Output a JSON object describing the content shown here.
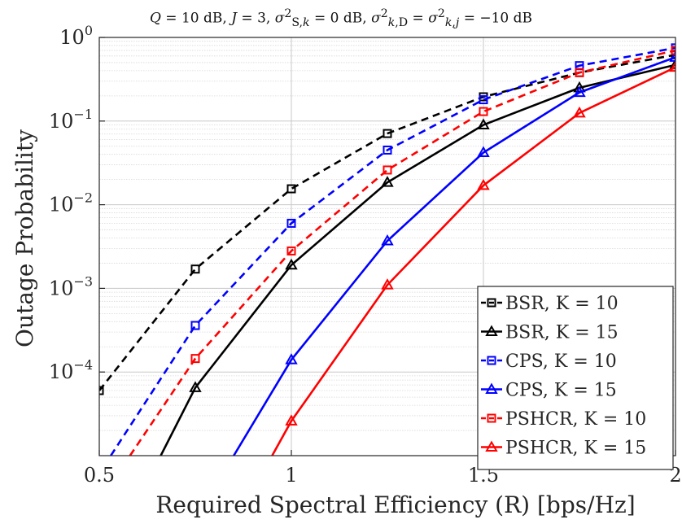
{
  "chart_data": {
    "type": "line",
    "title": "Q = 10 dB, J = 3, σ²_{S,k} = 0 dB, σ²_{k,D} = σ²_{k,j} = −10 dB",
    "xlabel": "Required Spectral Efficiency (R) [bps/Hz]",
    "ylabel": "Outage Probability",
    "yscale": "log",
    "xlim": [
      0.5,
      2
    ],
    "ylim": [
      1e-05,
      1
    ],
    "xticks": [
      "0.5",
      "1",
      "1.5",
      "2"
    ],
    "xtick_values": [
      0.5,
      1,
      1.5,
      2
    ],
    "yticks": [
      {
        "base": "10",
        "exp": "0",
        "value": 1
      },
      {
        "base": "10",
        "exp": "−1",
        "value": 0.1
      },
      {
        "base": "10",
        "exp": "−2",
        "value": 0.01
      },
      {
        "base": "10",
        "exp": "−3",
        "value": 0.001
      },
      {
        "base": "10",
        "exp": "−4",
        "value": 0.0001
      }
    ],
    "grid": true,
    "legend_position": "bottom-right",
    "series": [
      {
        "name": "BSR, K = 10",
        "color": "#000000",
        "dash": true,
        "marker": "square",
        "x": [
          0.5,
          0.75,
          1.0,
          1.25,
          1.5,
          1.75,
          2.0
        ],
        "y": [
          6e-05,
          0.0017,
          0.0155,
          0.071,
          0.195,
          0.38,
          0.62
        ]
      },
      {
        "name": "BSR, K = 15",
        "color": "#000000",
        "dash": false,
        "marker": "triangle",
        "x": [
          0.75,
          1.0,
          1.25,
          1.5,
          1.75,
          2.0
        ],
        "y": [
          6.5e-05,
          0.0019,
          0.0185,
          0.09,
          0.25,
          0.47
        ],
        "extend_to": [
          0.66,
          1e-05
        ]
      },
      {
        "name": "CPS, K = 10",
        "color": "#0000ff",
        "dash": true,
        "marker": "square",
        "x": [
          0.75,
          1.0,
          1.25,
          1.5,
          1.75,
          2.0
        ],
        "y": [
          0.00036,
          0.006,
          0.045,
          0.18,
          0.46,
          0.75
        ],
        "extend_to": [
          0.53,
          1e-05
        ]
      },
      {
        "name": "CPS, K = 15",
        "color": "#0000ff",
        "dash": false,
        "marker": "triangle",
        "x": [
          1.0,
          1.25,
          1.5,
          1.75,
          2.0
        ],
        "y": [
          0.00014,
          0.0037,
          0.042,
          0.22,
          0.58
        ],
        "extend_to": [
          0.85,
          1e-05
        ]
      },
      {
        "name": "PSHCR, K = 10",
        "color": "#ff0000",
        "dash": true,
        "marker": "square",
        "x": [
          0.75,
          1.0,
          1.25,
          1.5,
          1.75,
          2.0
        ],
        "y": [
          0.000145,
          0.0028,
          0.026,
          0.13,
          0.38,
          0.7
        ],
        "extend_to": [
          0.58,
          1e-05
        ]
      },
      {
        "name": "PSHCR, K = 15",
        "color": "#ff0000",
        "dash": false,
        "marker": "triangle",
        "x": [
          1.0,
          1.25,
          1.5,
          1.75,
          2.0
        ],
        "y": [
          2.6e-05,
          0.0011,
          0.017,
          0.125,
          0.44
        ],
        "extend_to": [
          0.95,
          1e-05
        ]
      }
    ]
  }
}
